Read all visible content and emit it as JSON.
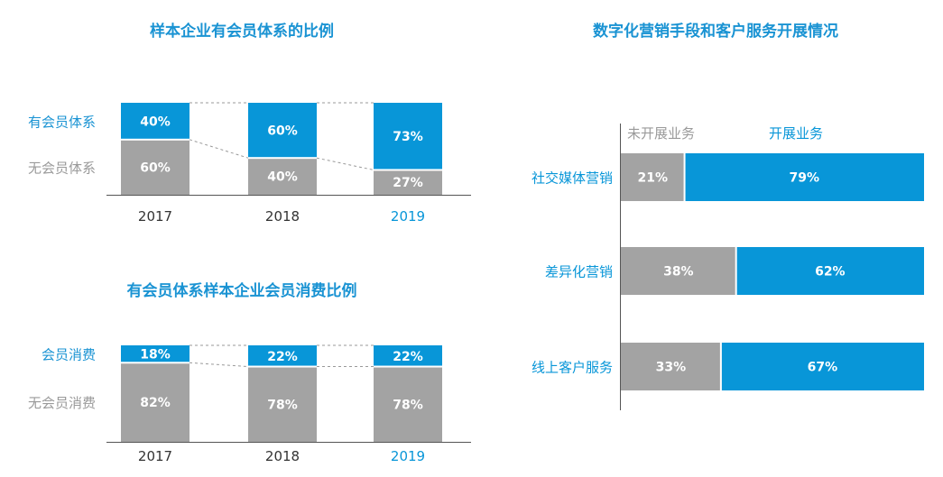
{
  "colors": {
    "accent": "#0896d8",
    "gray": "#a3a3a3",
    "title": "#1a93d3",
    "row_label_member": "#1a93d3",
    "row_label_other": "#9a9a9a",
    "category_text": "#333333"
  },
  "chart_data": [
    {
      "type": "bar",
      "stacked": true,
      "percent": true,
      "title": "样本企业有会员体系的比例",
      "categories": [
        "2017",
        "2018",
        "2019"
      ],
      "highlight_category": "2019",
      "series": [
        {
          "name": "有会员体系",
          "values": [
            40,
            60,
            73
          ],
          "labels": [
            "40%",
            "60%",
            "73%"
          ],
          "color": "#0896d8"
        },
        {
          "name": "无会员体系",
          "values": [
            60,
            40,
            27
          ],
          "labels": [
            "60%",
            "40%",
            "27%"
          ],
          "color": "#a3a3a3"
        }
      ]
    },
    {
      "type": "bar",
      "stacked": true,
      "percent": true,
      "title": "有会员体系样本企业会员消费比例",
      "categories": [
        "2017",
        "2018",
        "2019"
      ],
      "highlight_category": "2019",
      "series": [
        {
          "name": "会员消费",
          "values": [
            18,
            22,
            22
          ],
          "labels": [
            "18%",
            "22%",
            "22%"
          ],
          "color": "#0896d8"
        },
        {
          "name": "无会员消费",
          "values": [
            82,
            78,
            78
          ],
          "labels": [
            "82%",
            "78%",
            "78%"
          ],
          "color": "#a3a3a3"
        }
      ]
    },
    {
      "type": "bar",
      "orientation": "horizontal",
      "stacked": true,
      "percent": true,
      "title": "数字化营销手段和客户服务开展情况",
      "legend_position": "top",
      "categories": [
        "社交媒体营销",
        "差异化营销",
        "线上客户服务"
      ],
      "series": [
        {
          "name": "未开展业务",
          "values": [
            21,
            38,
            33
          ],
          "labels": [
            "21%",
            "38%",
            "33%"
          ],
          "color": "#a3a3a3"
        },
        {
          "name": "开展业务",
          "values": [
            79,
            62,
            67
          ],
          "labels": [
            "79%",
            "62%",
            "67%"
          ],
          "color": "#0896d8"
        }
      ]
    }
  ]
}
